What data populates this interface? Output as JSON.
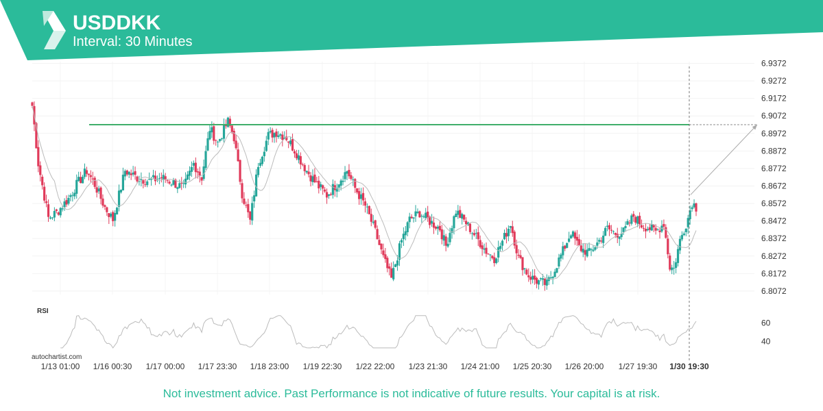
{
  "header": {
    "symbol": "USDDKK",
    "interval": "Interval: 30 Minutes"
  },
  "colors": {
    "brand": "#2bbb9a",
    "bull": "#26a69a",
    "bear": "#e03a5a",
    "level": "#3fae6a",
    "ma": "#bbbbbb"
  },
  "icons": {
    "logo": "autochartist-logo-icon"
  },
  "footer": {
    "disclaimer": "Not investment advice. Past Performance is not indicative of future results. Your capital is at risk."
  },
  "watermark": "autochartist.com",
  "chart_data": {
    "type": "candlestick",
    "title": "USDDKK",
    "subtitle": "Interval: 30 Minutes",
    "y_ticks": [
      "6.9372",
      "6.9272",
      "6.9172",
      "6.9072",
      "6.8972",
      "6.8872",
      "6.8772",
      "6.8672",
      "6.8572",
      "6.8472",
      "6.8372",
      "6.8272",
      "6.8172",
      "6.8072"
    ],
    "ylim": [
      6.8052,
      6.9382
    ],
    "x_ticks": [
      "1/13 01:00",
      "1/16 00:30",
      "1/17 00:00",
      "1/17 23:30",
      "1/18 23:00",
      "1/19 22:30",
      "1/22 22:00",
      "1/23 21:30",
      "1/24 21:00",
      "1/25 20:30",
      "1/26 20:00",
      "1/27 19:30",
      "1/30 19:30"
    ],
    "current_label": "1/30 19:30",
    "resistance_level": 6.9022,
    "projection": {
      "from": 6.8622,
      "to": 6.9022
    },
    "price_anchors": [
      [
        0,
        6.913
      ],
      [
        3,
        6.88
      ],
      [
        8,
        6.849
      ],
      [
        12,
        6.852
      ],
      [
        18,
        6.86
      ],
      [
        22,
        6.868
      ],
      [
        27,
        6.876
      ],
      [
        31,
        6.868
      ],
      [
        36,
        6.855
      ],
      [
        40,
        6.848
      ],
      [
        46,
        6.876
      ],
      [
        52,
        6.872
      ],
      [
        58,
        6.87
      ],
      [
        64,
        6.872
      ],
      [
        70,
        6.869
      ],
      [
        75,
        6.866
      ],
      [
        80,
        6.88
      ],
      [
        84,
        6.872
      ],
      [
        88,
        6.9
      ],
      [
        92,
        6.892
      ],
      [
        97,
        6.904
      ],
      [
        100,
        6.895
      ],
      [
        104,
        6.863
      ],
      [
        108,
        6.847
      ],
      [
        112,
        6.88
      ],
      [
        117,
        6.896
      ],
      [
        121,
        6.898
      ],
      [
        126,
        6.895
      ],
      [
        131,
        6.886
      ],
      [
        136,
        6.876
      ],
      [
        141,
        6.868
      ],
      [
        146,
        6.862
      ],
      [
        152,
        6.87
      ],
      [
        156,
        6.876
      ],
      [
        160,
        6.866
      ],
      [
        165,
        6.856
      ],
      [
        170,
        6.841
      ],
      [
        174,
        6.826
      ],
      [
        178,
        6.814
      ],
      [
        183,
        6.836
      ],
      [
        187,
        6.848
      ],
      [
        192,
        6.852
      ],
      [
        197,
        6.847
      ],
      [
        202,
        6.843
      ],
      [
        205,
        6.833
      ],
      [
        210,
        6.853
      ],
      [
        215,
        6.846
      ],
      [
        220,
        6.838
      ],
      [
        225,
        6.83
      ],
      [
        229,
        6.826
      ],
      [
        234,
        6.838
      ],
      [
        237,
        6.846
      ],
      [
        241,
        6.826
      ],
      [
        246,
        6.816
      ],
      [
        250,
        6.813
      ],
      [
        255,
        6.811
      ],
      [
        259,
        6.82
      ],
      [
        263,
        6.83
      ],
      [
        267,
        6.841
      ],
      [
        271,
        6.832
      ],
      [
        276,
        6.829
      ],
      [
        281,
        6.836
      ],
      [
        285,
        6.843
      ],
      [
        289,
        6.84
      ],
      [
        293,
        6.841
      ],
      [
        298,
        6.85
      ],
      [
        302,
        6.845
      ],
      [
        306,
        6.843
      ],
      [
        309,
        6.841
      ],
      [
        313,
        6.846
      ],
      [
        316,
        6.821
      ],
      [
        318,
        6.82
      ],
      [
        321,
        6.836
      ],
      [
        325,
        6.849
      ],
      [
        327,
        6.858
      ],
      [
        329,
        6.855
      ]
    ],
    "rsi": {
      "label": "RSI",
      "ticks": [
        60,
        40
      ],
      "ylim": [
        30,
        70
      ]
    }
  }
}
